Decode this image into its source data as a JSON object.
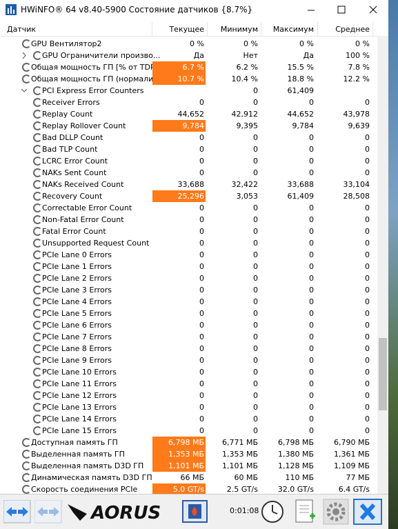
{
  "window": {
    "title": "HWiNFO® 64 v8.40-5900 Состояние датчиков {8.7%}"
  },
  "table": {
    "columns": [
      "Датчик",
      "Текущее",
      "Минимум",
      "Максимум",
      "Среднее"
    ],
    "rows": [
      {
        "label": "GPU Вентилятор2",
        "values": [
          "0 %",
          "0 %",
          "0 %",
          "0 %"
        ]
      },
      {
        "label": "GPU Ограничители произво...",
        "values": [
          "Да",
          "Нет",
          "Да",
          "100 %"
        ],
        "expanded": false
      },
      {
        "label": "Общая мощность ГП [% от TDP]",
        "values": [
          "6.7 %",
          "6.2 %",
          "15.5 %",
          "7.8 %"
        ],
        "highlight": true
      },
      {
        "label": "Общая мощность ГП (нормализ...",
        "values": [
          "10.7 %",
          "10.4 %",
          "18.8 %",
          "12.2 %"
        ],
        "highlight": true
      },
      {
        "label": "PCI Express Error Counters",
        "values": [
          null,
          "0",
          "61,409",
          null
        ],
        "expanded": true,
        "children": [
          {
            "label": "Receiver Errors",
            "values": [
              "0",
              "0",
              "0",
              "0"
            ]
          },
          {
            "label": "Replay Count",
            "values": [
              "44,652",
              "42,912",
              "44,652",
              "43,978"
            ]
          },
          {
            "label": "Replay Rollover Count",
            "values": [
              "9,784",
              "9,395",
              "9,784",
              "9,639"
            ],
            "highlight": true
          },
          {
            "label": "Bad DLLP Count",
            "values": [
              "0",
              "0",
              "0",
              "0"
            ]
          },
          {
            "label": "Bad TLP Count",
            "values": [
              "0",
              "0",
              "0",
              "0"
            ]
          },
          {
            "label": "LCRC Error Count",
            "values": [
              "0",
              "0",
              "0",
              "0"
            ]
          },
          {
            "label": "NAKs Sent Count",
            "values": [
              "0",
              "0",
              "0",
              "0"
            ]
          },
          {
            "label": "NAKs Received Count",
            "values": [
              "33,688",
              "32,422",
              "33,688",
              "33,104"
            ]
          },
          {
            "label": "Recovery Count",
            "values": [
              "25,296",
              "3,053",
              "61,409",
              "28,508"
            ],
            "highlight": true
          },
          {
            "label": "Correctable Error Count",
            "values": [
              "0",
              "0",
              "0",
              "0"
            ]
          },
          {
            "label": "Non-Fatal Error Count",
            "values": [
              "0",
              "0",
              "0",
              "0"
            ]
          },
          {
            "label": "Fatal Error Count",
            "values": [
              "0",
              "0",
              "0",
              "0"
            ]
          },
          {
            "label": "Unsupported Request Count",
            "values": [
              "0",
              "0",
              "0",
              "0"
            ]
          },
          {
            "label": "PCIe Lane 0 Errors",
            "values": [
              "0",
              "0",
              "0",
              "0"
            ]
          },
          {
            "label": "PCIe Lane 1 Errors",
            "values": [
              "0",
              "0",
              "0",
              "0"
            ]
          },
          {
            "label": "PCIe Lane 2 Errors",
            "values": [
              "0",
              "0",
              "0",
              "0"
            ]
          },
          {
            "label": "PCIe Lane 3 Errors",
            "values": [
              "0",
              "0",
              "0",
              "0"
            ]
          },
          {
            "label": "PCIe Lane 4 Errors",
            "values": [
              "0",
              "0",
              "0",
              "0"
            ]
          },
          {
            "label": "PCIe Lane 5 Errors",
            "values": [
              "0",
              "0",
              "0",
              "0"
            ]
          },
          {
            "label": "PCIe Lane 6 Errors",
            "values": [
              "0",
              "0",
              "0",
              "0"
            ]
          },
          {
            "label": "PCIe Lane 7 Errors",
            "values": [
              "0",
              "0",
              "0",
              "0"
            ]
          },
          {
            "label": "PCIe Lane 8 Errors",
            "values": [
              "0",
              "0",
              "0",
              "0"
            ]
          },
          {
            "label": "PCIe Lane 9 Errors",
            "values": [
              "0",
              "0",
              "0",
              "0"
            ]
          },
          {
            "label": "PCIe Lane 10 Errors",
            "values": [
              "0",
              "0",
              "0",
              "0"
            ]
          },
          {
            "label": "PCIe Lane 11 Errors",
            "values": [
              "0",
              "0",
              "0",
              "0"
            ]
          },
          {
            "label": "PCIe Lane 12 Errors",
            "values": [
              "0",
              "0",
              "0",
              "0"
            ]
          },
          {
            "label": "PCIe Lane 13 Errors",
            "values": [
              "0",
              "0",
              "0",
              "0"
            ]
          },
          {
            "label": "PCIe Lane 14 Errors",
            "values": [
              "0",
              "0",
              "0",
              "0"
            ]
          },
          {
            "label": "PCIe Lane 15 Errors",
            "values": [
              "0",
              "0",
              "0",
              "0"
            ]
          }
        ]
      },
      {
        "label": "Доступная память ГП",
        "values": [
          "6,798 МБ",
          "6,771 МБ",
          "6,798 МБ",
          "6,790 МБ"
        ],
        "highlight": true
      },
      {
        "label": "Выделенная память ГП",
        "values": [
          "1,353 МБ",
          "1,353 МБ",
          "1,380 МБ",
          "1,361 МБ"
        ],
        "highlight": true
      },
      {
        "label": "Выделенная память D3D ГП",
        "values": [
          "1,101 МБ",
          "1,101 МБ",
          "1,128 МБ",
          "1,109 МБ"
        ],
        "highlight": true
      },
      {
        "label": "Динамическая память D3D ГП",
        "values": [
          "66 МБ",
          "60 МБ",
          "110 МБ",
          "77 МБ"
        ]
      },
      {
        "label": "Скорость соединения PCIe",
        "values": [
          "5.0 GT/s",
          "2.5 GT/s",
          "32.0 GT/s",
          "6.4 GT/s"
        ],
        "highlight": true
      }
    ]
  },
  "toolbar": {
    "logo": "AORUS",
    "timer": "0:01:08"
  }
}
